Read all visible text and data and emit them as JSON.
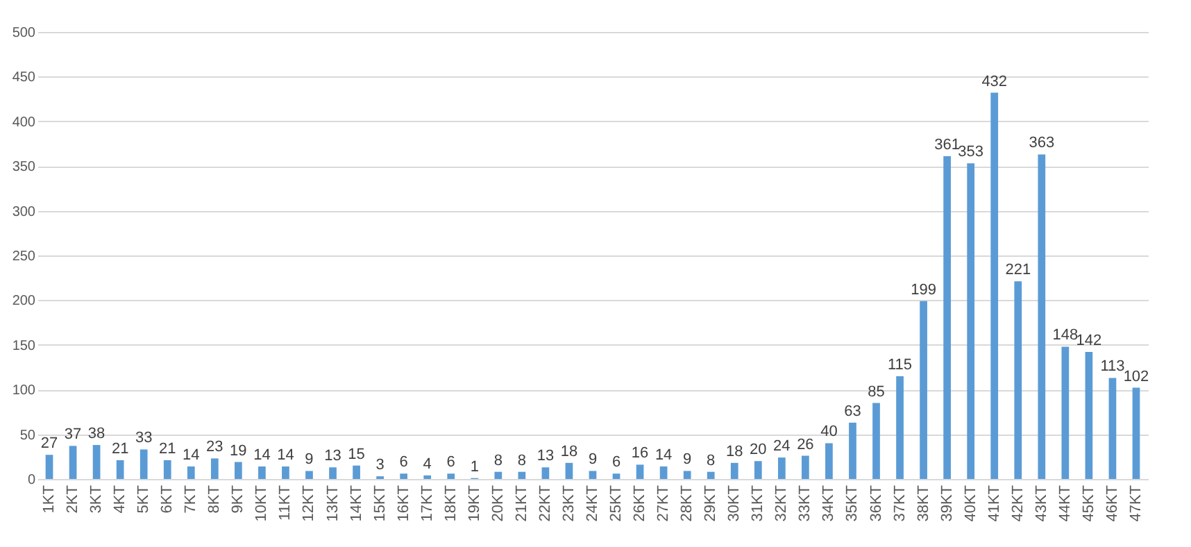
{
  "chart_data": {
    "type": "bar",
    "categories": [
      "1KT",
      "2KT",
      "3KT",
      "4KT",
      "5KT",
      "6KT",
      "7KT",
      "8KT",
      "9KT",
      "10KT",
      "11KT",
      "12KT",
      "13KT",
      "14KT",
      "15KT",
      "16KT",
      "17KT",
      "18KT",
      "19KT",
      "20KT",
      "21KT",
      "22KT",
      "23KT",
      "24KT",
      "25KT",
      "26KT",
      "27KT",
      "28KT",
      "29KT",
      "30KT",
      "31KT",
      "32KT",
      "33KT",
      "34KT",
      "35KT",
      "36KT",
      "37KT",
      "38KT",
      "39KT",
      "40KT",
      "41KT",
      "42KT",
      "43KT",
      "44KT",
      "45KT",
      "46KT",
      "47KT"
    ],
    "values": [
      27,
      37,
      38,
      21,
      33,
      21,
      14,
      23,
      19,
      14,
      14,
      9,
      13,
      15,
      3,
      6,
      4,
      6,
      1,
      8,
      8,
      13,
      18,
      9,
      6,
      16,
      14,
      9,
      8,
      18,
      20,
      24,
      26,
      40,
      63,
      85,
      115,
      199,
      361,
      353,
      432,
      221,
      363,
      148,
      142,
      113,
      102
    ],
    "color": "#5b9bd5",
    "ylim": [
      0,
      500
    ],
    "yticks": [
      0,
      50,
      100,
      150,
      200,
      250,
      300,
      350,
      400,
      450,
      500
    ],
    "grid": "y",
    "data_labels": true
  }
}
